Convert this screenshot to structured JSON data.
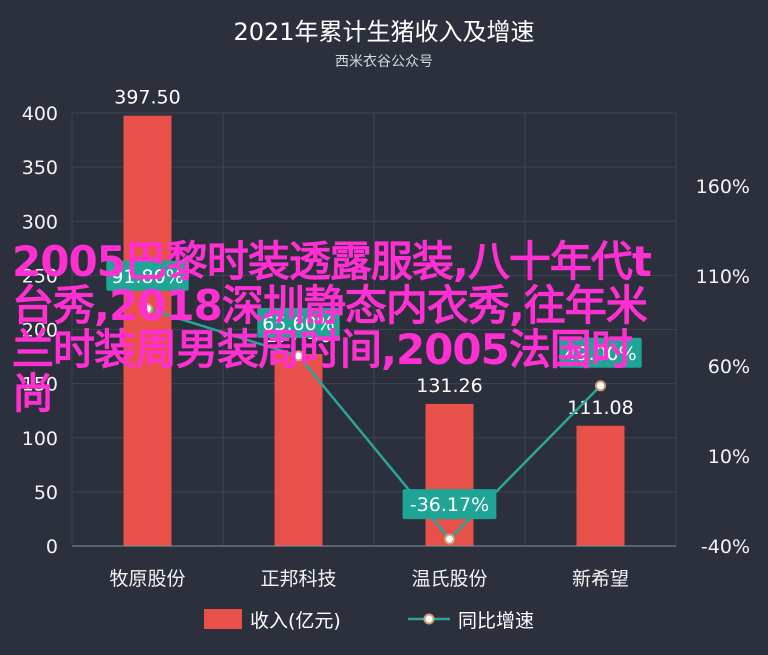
{
  "chart_data": {
    "type": "bar",
    "title": "2021年累计生猪收入及增速",
    "subtitle": "西米衣谷公众号",
    "categories": [
      "牧原股份",
      "正邦科技",
      "温氏股份",
      "新希望"
    ],
    "series": [
      {
        "name": "收入(亿元)",
        "type": "bar",
        "axis": "left",
        "values": [
          397.5,
          177.4,
          131.26,
          111.08
        ],
        "labels": [
          "397.50",
          "177.40",
          "131.26",
          "111.08"
        ]
      },
      {
        "name": "同比增速",
        "type": "line",
        "axis": "right",
        "values": [
          91.8,
          65.6,
          -36.17,
          49.0
        ],
        "labels": [
          "91.80%",
          "65.60%",
          "-36.17%",
          "49.00%"
        ]
      }
    ],
    "ylim": [
      0,
      400
    ],
    "yticks": [
      "0",
      "50",
      "100",
      "150",
      "200",
      "250",
      "300",
      "350",
      "400"
    ],
    "y2lim": [
      -40,
      160
    ],
    "y2ticks": [
      "-40%",
      "10%",
      "60%",
      "110%",
      "160%"
    ],
    "grid": true,
    "legend_position": "bottom",
    "colors": {
      "bar": "#e8514a",
      "line": "#2aa59a",
      "label_box": "#1ea596",
      "background": "#2b303c",
      "grid": "#3d4452"
    }
  },
  "overlay_text": "2005巴黎时装透露服装,八十年代t台秀,2018深圳静态内衣秀,往年米兰时装周男装周时间,2005法国时尚"
}
